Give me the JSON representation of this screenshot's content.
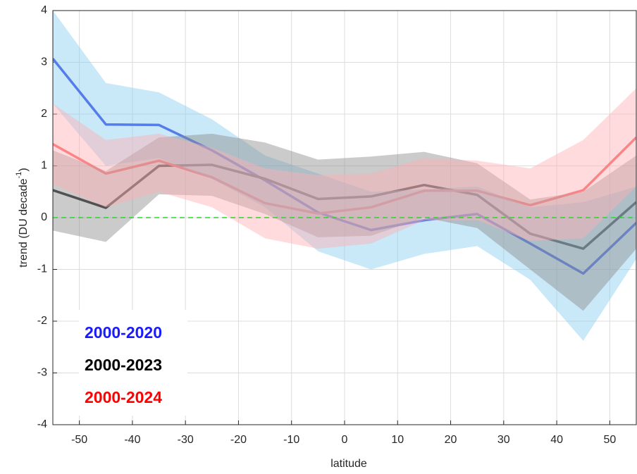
{
  "chart_data": {
    "type": "line",
    "xlabel": "latitude",
    "ylabel": {
      "text": "trend (DU decade",
      "sup": "-1",
      "tail": ")"
    },
    "x": [
      -55,
      -45,
      -35,
      -25,
      -15,
      -5,
      5,
      15,
      25,
      35,
      45,
      55
    ],
    "xlim": [
      -55,
      55
    ],
    "xticks": [
      -50,
      -40,
      -30,
      -20,
      -10,
      0,
      10,
      20,
      30,
      40,
      50
    ],
    "ylim": [
      -4,
      4
    ],
    "yticks": [
      -4,
      -3,
      -2,
      -1,
      0,
      1,
      2,
      3,
      4
    ],
    "grid": true,
    "legend": "lower left",
    "reference_line": {
      "value": 0,
      "color": "#22dd22"
    },
    "series": [
      {
        "name": "2000-2020",
        "color": "#2b3be8",
        "label_color": "#1a1aff",
        "band_color": "#87cdef",
        "values": [
          3.07,
          1.8,
          1.79,
          1.3,
          0.72,
          0.1,
          -0.24,
          -0.05,
          0.07,
          -0.5,
          -1.08,
          -0.1
        ],
        "upper": [
          4.0,
          2.6,
          2.42,
          1.9,
          1.2,
          0.85,
          0.5,
          0.55,
          0.6,
          0.2,
          0.3,
          0.6
        ],
        "lower": [
          2.2,
          1.0,
          1.15,
          0.75,
          0.2,
          -0.65,
          -1.0,
          -0.7,
          -0.55,
          -1.2,
          -2.38,
          -0.8
        ]
      },
      {
        "name": "2000-2023",
        "color": "#222222",
        "label_color": "#000000",
        "band_color": "#8c8c8c",
        "values": [
          0.53,
          0.19,
          1.0,
          1.02,
          0.75,
          0.36,
          0.41,
          0.63,
          0.44,
          -0.31,
          -0.6,
          0.3
        ],
        "upper": [
          1.3,
          0.9,
          1.55,
          1.62,
          1.45,
          1.12,
          1.18,
          1.27,
          1.05,
          0.35,
          0.5,
          1.2
        ],
        "lower": [
          -0.25,
          -0.47,
          0.45,
          0.42,
          0.07,
          -0.38,
          -0.35,
          0.0,
          -0.2,
          -1.0,
          -1.8,
          -0.6
        ]
      },
      {
        "name": "2000-2024",
        "color": "#ff6060",
        "label_color": "#ff0000",
        "band_color": "#ffb0b4",
        "values": [
          1.42,
          0.85,
          1.1,
          0.78,
          0.28,
          0.08,
          0.2,
          0.52,
          0.52,
          0.24,
          0.53,
          1.55
        ],
        "upper": [
          2.2,
          1.5,
          1.62,
          1.35,
          0.95,
          0.82,
          0.85,
          1.15,
          1.1,
          0.95,
          1.5,
          2.5
        ],
        "lower": [
          0.65,
          0.2,
          0.5,
          0.2,
          -0.4,
          -0.6,
          -0.5,
          -0.05,
          -0.05,
          -0.45,
          -0.4,
          0.6
        ]
      }
    ]
  }
}
